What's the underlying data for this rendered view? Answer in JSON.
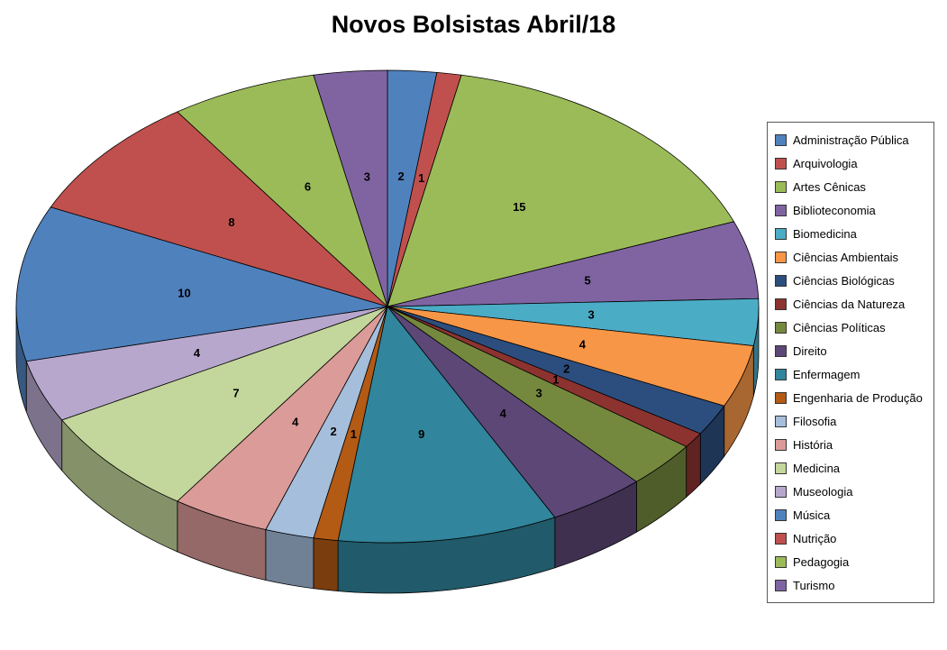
{
  "title": "Novos Bolsistas Abril/18",
  "chart_data": {
    "type": "pie",
    "style": "3d",
    "title": "Novos Bolsistas Abril/18",
    "legend_position": "right",
    "data_labels": "values",
    "total": 94,
    "start_angle_deg": 0,
    "direction": "clockwise",
    "categories": [
      "Administração Pública",
      "Arquivologia",
      "Artes Cênicas",
      "Biblioteconomia",
      "Biomedicina",
      "Ciências Ambientais",
      "Ciências Biológicas",
      "Ciências da Natureza",
      "Ciências Políticas",
      "Direito",
      "Enfermagem",
      "Engenharia de Produção",
      "Filosofia",
      "História",
      "Medicina",
      "Museologia",
      "Música",
      "Nutrição",
      "Pedagogia",
      "Turismo"
    ],
    "values": [
      2,
      1,
      15,
      5,
      3,
      4,
      2,
      1,
      3,
      4,
      9,
      1,
      2,
      4,
      7,
      4,
      10,
      8,
      6,
      3
    ],
    "colors": [
      "#4F81BD",
      "#C0504D",
      "#9BBB59",
      "#8064A2",
      "#4BACC6",
      "#F79646",
      "#2C4E7E",
      "#8C3330",
      "#74893E",
      "#5C4776",
      "#31859C",
      "#B35A14",
      "#A5BEDC",
      "#DB9B98",
      "#C3D69B",
      "#B7A7CD",
      "#4F81BD",
      "#C0504D",
      "#9BBB59",
      "#8064A2"
    ]
  }
}
